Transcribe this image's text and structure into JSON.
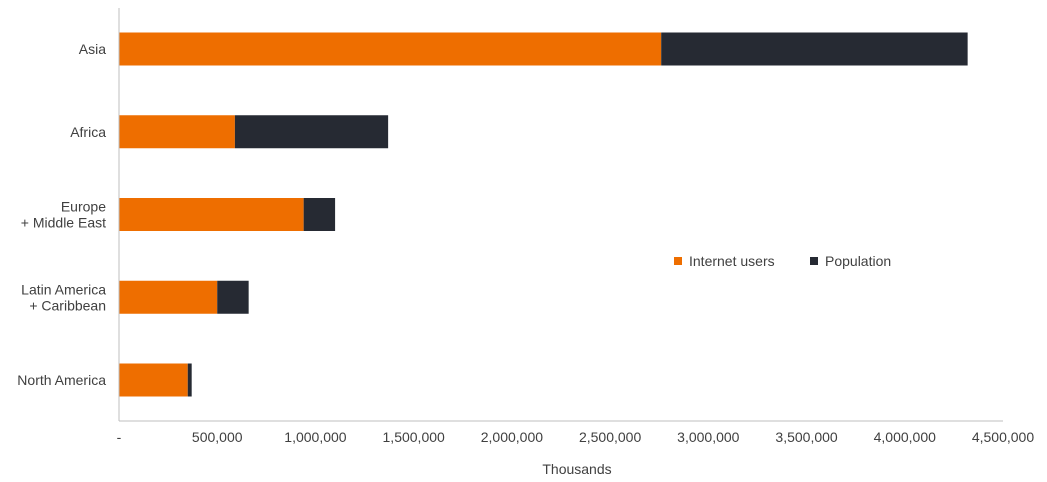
{
  "chart_data": {
    "type": "bar",
    "orientation": "horizontal",
    "stacked": true,
    "categories": [
      [
        "Asia"
      ],
      [
        "Africa"
      ],
      [
        "Europe",
        "+ Middle East"
      ],
      [
        "Latin America",
        "+ Caribbean"
      ],
      [
        "North America"
      ]
    ],
    "series": [
      {
        "name": "Internet users",
        "color": "#ee6e00",
        "values": [
          2760000,
          590000,
          940000,
          500000,
          350000
        ]
      },
      {
        "name": "Population",
        "color": "#262a33",
        "values": [
          1560000,
          780000,
          160000,
          160000,
          20000
        ]
      }
    ],
    "xlabel": "Thousands",
    "ylabel": "",
    "xlim": [
      0,
      4500000
    ],
    "xticks": [
      0,
      500000,
      1000000,
      1500000,
      2000000,
      2500000,
      3000000,
      3500000,
      4000000,
      4500000
    ],
    "xtick_labels": [
      "-",
      "500,000",
      "1,000,000",
      "1,500,000",
      "2,000,000",
      "2,500,000",
      "3,000,000",
      "3,500,000",
      "4,000,000",
      "4,500,000"
    ],
    "grid": false,
    "legend_position": "center-right"
  }
}
